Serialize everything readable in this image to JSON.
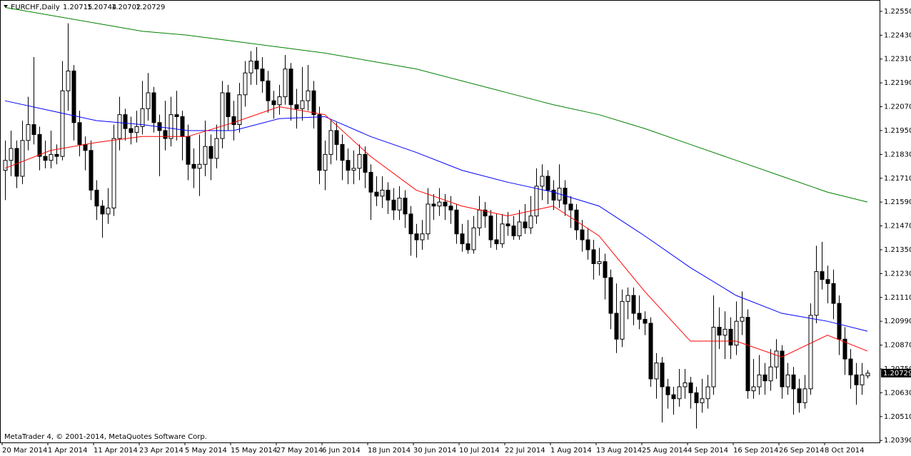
{
  "chart_data": {
    "type": "candlestick",
    "symbol": "EURCHF,Daily",
    "copyright": "MetaTrader 4, © 2001-2014, MetaQuotes Software Corp.",
    "ylim": [
      1.2038,
      1.226
    ],
    "yticks": [
      {
        "value": 1.2255,
        "label": "1.22550"
      },
      {
        "value": 1.2243,
        "label": "1.22430"
      },
      {
        "value": 1.2231,
        "label": "1.22310"
      },
      {
        "value": 1.2219,
        "label": "1.22190"
      },
      {
        "value": 1.2207,
        "label": "1.22070"
      },
      {
        "value": 1.2195,
        "label": "1.21950"
      },
      {
        "value": 1.2183,
        "label": "1.21830"
      },
      {
        "value": 1.2171,
        "label": "1.21710"
      },
      {
        "value": 1.2159,
        "label": "1.21590"
      },
      {
        "value": 1.2147,
        "label": "1.21470"
      },
      {
        "value": 1.2135,
        "label": "1.21350"
      },
      {
        "value": 1.2123,
        "label": "1.21230"
      },
      {
        "value": 1.2111,
        "label": "1.21110"
      },
      {
        "value": 1.2099,
        "label": "1.20990"
      },
      {
        "value": 1.2087,
        "label": "1.20870"
      },
      {
        "value": 1.2075,
        "label": "1.20750"
      },
      {
        "value": 1.2063,
        "label": "1.20630"
      },
      {
        "value": 1.2051,
        "label": "1.20510"
      },
      {
        "value": 1.2039,
        "label": "1.20390"
      }
    ],
    "xticks": [
      {
        "value": 0,
        "label": "20 Mar 2014"
      },
      {
        "value": 8,
        "label": "1 Apr 2014"
      },
      {
        "value": 16,
        "label": "11 Apr 2014"
      },
      {
        "value": 24,
        "label": "23 Apr 2014"
      },
      {
        "value": 32,
        "label": "5 May 2014"
      },
      {
        "value": 40,
        "label": "15 May 2014"
      },
      {
        "value": 48,
        "label": "27 May 2014"
      },
      {
        "value": 56,
        "label": "6 Jun 2014"
      },
      {
        "value": 64,
        "label": "18 Jun 2014"
      },
      {
        "value": 72,
        "label": "30 Jun 2014"
      },
      {
        "value": 80,
        "label": "10 Jul 2014"
      },
      {
        "value": 88,
        "label": "22 Jul 2014"
      },
      {
        "value": 96,
        "label": "1 Aug 2014"
      },
      {
        "value": 104,
        "label": "13 Aug 2014"
      },
      {
        "value": 112,
        "label": "25 Aug 2014"
      },
      {
        "value": 120,
        "label": "4 Sep 2014"
      },
      {
        "value": 128,
        "label": "16 Sep 2014"
      },
      {
        "value": 136,
        "label": "26 Sep 2014"
      },
      {
        "value": 144,
        "label": "8 Oct 2014"
      }
    ],
    "ohlc": [
      [
        1.2175,
        1.219,
        1.216,
        1.218
      ],
      [
        1.218,
        1.2195,
        1.2172,
        1.2186
      ],
      [
        1.2186,
        1.219,
        1.2166,
        1.2172
      ],
      [
        1.2172,
        1.22,
        1.2168,
        1.219
      ],
      [
        1.219,
        1.2212,
        1.2185,
        1.2198
      ],
      [
        1.2198,
        1.2232,
        1.2188,
        1.2193
      ],
      [
        1.2193,
        1.2197,
        1.2175,
        1.2182
      ],
      [
        1.2182,
        1.219,
        1.2176,
        1.218
      ],
      [
        1.218,
        1.2195,
        1.2176,
        1.2183
      ],
      [
        1.2183,
        1.2188,
        1.2178,
        1.2182
      ],
      [
        1.2182,
        1.223,
        1.218,
        1.2215
      ],
      [
        1.2215,
        1.2249,
        1.2205,
        1.2225
      ],
      [
        1.2225,
        1.2228,
        1.219,
        1.2199
      ],
      [
        1.2199,
        1.2205,
        1.2182,
        1.2188
      ],
      [
        1.2188,
        1.2192,
        1.2175,
        1.2185
      ],
      [
        1.2185,
        1.219,
        1.216,
        1.2165
      ],
      [
        1.2165,
        1.217,
        1.215,
        1.2157
      ],
      [
        1.2157,
        1.216,
        1.2141,
        1.2153
      ],
      [
        1.2153,
        1.2166,
        1.2148,
        1.2156
      ],
      [
        1.2156,
        1.2198,
        1.2152,
        1.2191
      ],
      [
        1.2191,
        1.2212,
        1.2185,
        1.2203
      ],
      [
        1.2203,
        1.2206,
        1.219,
        1.2196
      ],
      [
        1.2196,
        1.2202,
        1.2188,
        1.2194
      ],
      [
        1.2194,
        1.2205,
        1.2189,
        1.2197
      ],
      [
        1.2197,
        1.222,
        1.2193,
        1.2206
      ],
      [
        1.2206,
        1.2224,
        1.22,
        1.2214
      ],
      [
        1.2214,
        1.2217,
        1.2194,
        1.2199
      ],
      [
        1.2199,
        1.2203,
        1.2172,
        1.2195
      ],
      [
        1.2195,
        1.221,
        1.2185,
        1.2191
      ],
      [
        1.2191,
        1.2212,
        1.2187,
        1.2203
      ],
      [
        1.2203,
        1.2215,
        1.219,
        1.2202
      ],
      [
        1.2202,
        1.2205,
        1.218,
        1.2192
      ],
      [
        1.2192,
        1.2198,
        1.217,
        1.2178
      ],
      [
        1.2178,
        1.2186,
        1.2166,
        1.2176
      ],
      [
        1.2176,
        1.2193,
        1.2162,
        1.2178
      ],
      [
        1.2178,
        1.22,
        1.2172,
        1.2187
      ],
      [
        1.2187,
        1.2193,
        1.217,
        1.2181
      ],
      [
        1.2181,
        1.2198,
        1.2176,
        1.2191
      ],
      [
        1.2191,
        1.222,
        1.2186,
        1.2214
      ],
      [
        1.2214,
        1.2218,
        1.2195,
        1.2202
      ],
      [
        1.2202,
        1.221,
        1.219,
        1.2198
      ],
      [
        1.2198,
        1.2219,
        1.2194,
        1.2213
      ],
      [
        1.2213,
        1.223,
        1.2207,
        1.2224
      ],
      [
        1.2224,
        1.2235,
        1.2218,
        1.223
      ],
      [
        1.223,
        1.2237,
        1.2218,
        1.2226
      ],
      [
        1.2226,
        1.2232,
        1.2214,
        1.222
      ],
      [
        1.222,
        1.2225,
        1.2204,
        1.221
      ],
      [
        1.221,
        1.2215,
        1.2201,
        1.2208
      ],
      [
        1.2208,
        1.2218,
        1.2203,
        1.2212
      ],
      [
        1.2212,
        1.2233,
        1.2208,
        1.2226
      ],
      [
        1.2226,
        1.2229,
        1.22,
        1.2208
      ],
      [
        1.2208,
        1.2216,
        1.2196,
        1.2206
      ],
      [
        1.2206,
        1.2227,
        1.22,
        1.221
      ],
      [
        1.221,
        1.2228,
        1.2205,
        1.2215
      ],
      [
        1.2215,
        1.222,
        1.2196,
        1.2203
      ],
      [
        1.2203,
        1.2207,
        1.2168,
        1.2175
      ],
      [
        1.2175,
        1.219,
        1.2165,
        1.2183
      ],
      [
        1.2183,
        1.22,
        1.2178,
        1.2195
      ],
      [
        1.2195,
        1.2199,
        1.218,
        1.2188
      ],
      [
        1.2188,
        1.2193,
        1.217,
        1.218
      ],
      [
        1.218,
        1.2186,
        1.2168,
        1.2175
      ],
      [
        1.2175,
        1.2185,
        1.2168,
        1.2176
      ],
      [
        1.2176,
        1.2188,
        1.217,
        1.2183
      ],
      [
        1.2183,
        1.2187,
        1.2166,
        1.2174
      ],
      [
        1.2174,
        1.2178,
        1.215,
        1.2164
      ],
      [
        1.2164,
        1.2172,
        1.2157,
        1.2162
      ],
      [
        1.2162,
        1.2172,
        1.2156,
        1.2165
      ],
      [
        1.2165,
        1.2169,
        1.2153,
        1.216
      ],
      [
        1.216,
        1.2166,
        1.215,
        1.2155
      ],
      [
        1.2155,
        1.2167,
        1.215,
        1.2161
      ],
      [
        1.2161,
        1.2165,
        1.2146,
        1.2153
      ],
      [
        1.2153,
        1.2157,
        1.2132,
        1.2143
      ],
      [
        1.2143,
        1.2148,
        1.2131,
        1.214
      ],
      [
        1.214,
        1.215,
        1.2135,
        1.2143
      ],
      [
        1.2143,
        1.2166,
        1.214,
        1.2158
      ],
      [
        1.2158,
        1.2163,
        1.215,
        1.2157
      ],
      [
        1.2157,
        1.2166,
        1.2152,
        1.2159
      ],
      [
        1.2159,
        1.2163,
        1.215,
        1.2157
      ],
      [
        1.2157,
        1.2162,
        1.2148,
        1.2155
      ],
      [
        1.2155,
        1.2158,
        1.2138,
        1.2143
      ],
      [
        1.2143,
        1.2148,
        1.2134,
        1.2138
      ],
      [
        1.2138,
        1.215,
        1.2133,
        1.2135
      ],
      [
        1.2135,
        1.2152,
        1.2133,
        1.2146
      ],
      [
        1.2146,
        1.2162,
        1.2142,
        1.2155
      ],
      [
        1.2155,
        1.2159,
        1.2146,
        1.2152
      ],
      [
        1.2152,
        1.2155,
        1.2136,
        1.214
      ],
      [
        1.214,
        1.2153,
        1.2135,
        1.2138
      ],
      [
        1.2138,
        1.2153,
        1.2136,
        1.2148
      ],
      [
        1.2148,
        1.2154,
        1.2142,
        1.2147
      ],
      [
        1.2147,
        1.2152,
        1.214,
        1.2142
      ],
      [
        1.2142,
        1.2155,
        1.214,
        1.2149
      ],
      [
        1.2149,
        1.2158,
        1.2143,
        1.2146
      ],
      [
        1.2146,
        1.2162,
        1.2143,
        1.2152
      ],
      [
        1.2152,
        1.2176,
        1.2148,
        1.2167
      ],
      [
        1.2167,
        1.2178,
        1.216,
        1.2172
      ],
      [
        1.2172,
        1.2175,
        1.2158,
        1.2165
      ],
      [
        1.2165,
        1.217,
        1.2155,
        1.216
      ],
      [
        1.216,
        1.2178,
        1.2156,
        1.2166
      ],
      [
        1.2166,
        1.217,
        1.2152,
        1.2158
      ],
      [
        1.2158,
        1.2162,
        1.2146,
        1.2155
      ],
      [
        1.2155,
        1.2158,
        1.214,
        1.2145
      ],
      [
        1.2145,
        1.215,
        1.2134,
        1.214
      ],
      [
        1.214,
        1.2146,
        1.213,
        1.2135
      ],
      [
        1.2135,
        1.214,
        1.212,
        1.2128
      ],
      [
        1.2128,
        1.2136,
        1.2122,
        1.2129
      ],
      [
        1.2129,
        1.2133,
        1.211,
        1.2121
      ],
      [
        1.2121,
        1.2125,
        1.2095,
        1.2103
      ],
      [
        1.2103,
        1.2118,
        1.2083,
        1.209
      ],
      [
        1.209,
        1.2115,
        1.2086,
        1.2109
      ],
      [
        1.2109,
        1.2116,
        1.21,
        1.2112
      ],
      [
        1.2112,
        1.2116,
        1.2097,
        1.2103
      ],
      [
        1.2103,
        1.2112,
        1.2095,
        1.21
      ],
      [
        1.21,
        1.2104,
        1.2092,
        1.2098
      ],
      [
        1.2098,
        1.2101,
        1.2066,
        1.207
      ],
      [
        1.207,
        1.2083,
        1.206,
        1.2078
      ],
      [
        1.2078,
        1.2081,
        1.2048,
        1.2066
      ],
      [
        1.2066,
        1.207,
        1.2055,
        1.2062
      ],
      [
        1.2062,
        1.2066,
        1.2052,
        1.206
      ],
      [
        1.206,
        1.2075,
        1.2056,
        1.2066
      ],
      [
        1.2066,
        1.2075,
        1.206,
        1.2068
      ],
      [
        1.2068,
        1.2071,
        1.2055,
        1.2063
      ],
      [
        1.2063,
        1.2066,
        1.2045,
        1.2058
      ],
      [
        1.2058,
        1.207,
        1.2053,
        1.206
      ],
      [
        1.206,
        1.2072,
        1.2055,
        1.2066
      ],
      [
        1.2066,
        1.2112,
        1.2062,
        1.2096
      ],
      [
        1.2096,
        1.2106,
        1.2085,
        1.2092
      ],
      [
        1.2092,
        1.2104,
        1.208,
        1.2095
      ],
      [
        1.2095,
        1.2101,
        1.208,
        1.2087
      ],
      [
        1.2087,
        1.2109,
        1.2082,
        1.2099
      ],
      [
        1.2099,
        1.2114,
        1.2092,
        1.2101
      ],
      [
        1.2101,
        1.2105,
        1.206,
        1.2064
      ],
      [
        1.2064,
        1.208,
        1.206,
        1.2066
      ],
      [
        1.2066,
        1.2082,
        1.2062,
        1.2072
      ],
      [
        1.2072,
        1.2078,
        1.2062,
        1.2069
      ],
      [
        1.2069,
        1.2085,
        1.2064,
        1.2076
      ],
      [
        1.2076,
        1.209,
        1.207,
        1.2084
      ],
      [
        1.2084,
        1.2087,
        1.206,
        1.2066
      ],
      [
        1.2066,
        1.2078,
        1.2062,
        1.2072
      ],
      [
        1.2072,
        1.2076,
        1.2052,
        1.2065
      ],
      [
        1.2065,
        1.207,
        1.2053,
        1.2058
      ],
      [
        1.2058,
        1.2072,
        1.2055,
        1.2065
      ],
      [
        1.2065,
        1.2108,
        1.2062,
        1.2102
      ],
      [
        1.2102,
        1.2137,
        1.2098,
        1.2124
      ],
      [
        1.2124,
        1.2139,
        1.2115,
        1.212
      ],
      [
        1.212,
        1.2127,
        1.2108,
        1.2118
      ],
      [
        1.2118,
        1.2125,
        1.21,
        1.2108
      ],
      [
        1.2108,
        1.2112,
        1.2082,
        1.209
      ],
      [
        1.209,
        1.2096,
        1.2072,
        1.208
      ],
      [
        1.208,
        1.2085,
        1.2065,
        1.2072
      ],
      [
        1.2072,
        1.2078,
        1.2057,
        1.2067
      ],
      [
        1.2067,
        1.2078,
        1.2062,
        1.2072
      ],
      [
        1.20715,
        1.20744,
        1.20702,
        1.20729
      ]
    ],
    "series": [
      {
        "color": "#008000",
        "x": [
          0,
          8,
          16,
          24,
          32,
          40,
          48,
          56,
          64,
          72,
          80,
          88,
          96,
          104,
          112,
          120,
          128,
          136,
          144,
          151
        ],
        "values": [
          1.2257,
          1.2253,
          1.2249,
          1.2245,
          1.2243,
          1.224,
          1.2237,
          1.2234,
          1.223,
          1.2226,
          1.222,
          1.2214,
          1.2208,
          1.2203,
          1.2196,
          1.2188,
          1.218,
          1.2172,
          1.2164,
          1.2159
        ]
      },
      {
        "color": "#0000ff",
        "x": [
          0,
          8,
          16,
          24,
          32,
          40,
          48,
          56,
          64,
          72,
          80,
          88,
          96,
          104,
          112,
          120,
          128,
          136,
          144,
          151
        ],
        "values": [
          1.221,
          1.2205,
          1.22,
          1.2198,
          1.2195,
          1.2195,
          1.2201,
          1.2202,
          1.2192,
          1.2184,
          1.2175,
          1.2169,
          1.2164,
          1.2157,
          1.2142,
          1.2126,
          1.2112,
          1.2103,
          1.2099,
          1.2094
        ]
      },
      {
        "color": "#ff0000",
        "x": [
          0,
          8,
          16,
          24,
          32,
          40,
          48,
          56,
          64,
          72,
          80,
          88,
          96,
          104,
          112,
          120,
          128,
          136,
          144,
          151
        ],
        "values": [
          1.2176,
          1.2185,
          1.2189,
          1.2192,
          1.2192,
          1.2199,
          1.2207,
          1.2203,
          1.2182,
          1.2165,
          1.2157,
          1.2152,
          1.2157,
          1.2142,
          1.2114,
          1.2089,
          1.2089,
          1.2081,
          1.2092,
          1.2084
        ]
      }
    ]
  }
}
